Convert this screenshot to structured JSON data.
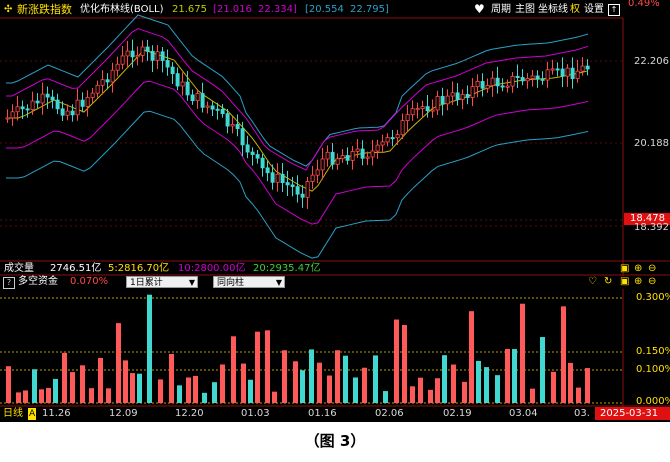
{
  "main": {
    "index_name": "新涨跌指数",
    "indicator_name": "优化布林线(BOLL)",
    "v1": "21.675",
    "v2": "[21.016",
    "v3": "22.334]",
    "v4": "[20.554",
    "v5": "22.795]",
    "toolbar": {
      "weekly": "周期",
      "main_chart": "主图",
      "axis": "坐标线",
      "quan": "权",
      "settings": "设置"
    },
    "price_labels": [
      "0.49%",
      "22.206",
      "20.188",
      "18.478",
      "18.392"
    ],
    "colors": {
      "up": "#ff4a4a",
      "down": "#40d8d0",
      "mid": "#c8b400",
      "band1": "#d000d0",
      "band2": "#2aa0c8",
      "accent": "#ffe000"
    }
  },
  "volume": {
    "label": "成交量",
    "total": "2746.51亿",
    "ma5": "5:2816.70亿",
    "ma10": "10:2800.00亿",
    "ma20": "20:2935.47亿"
  },
  "sub": {
    "name": "多空资金",
    "value": "0.070%",
    "select1": "1日累计",
    "select2": "同向柱",
    "y_labels": [
      "0.300%",
      "0.150%",
      "0.100%",
      "0.000%"
    ]
  },
  "xaxis": {
    "period": "日线",
    "lock": "A",
    "dates": [
      "11.26",
      "12.09",
      "12.20",
      "01.03",
      "01.16",
      "02.06",
      "02.19",
      "03.04",
      "03."
    ],
    "current_date": "2025-03-31"
  },
  "caption": "（图 3）"
}
